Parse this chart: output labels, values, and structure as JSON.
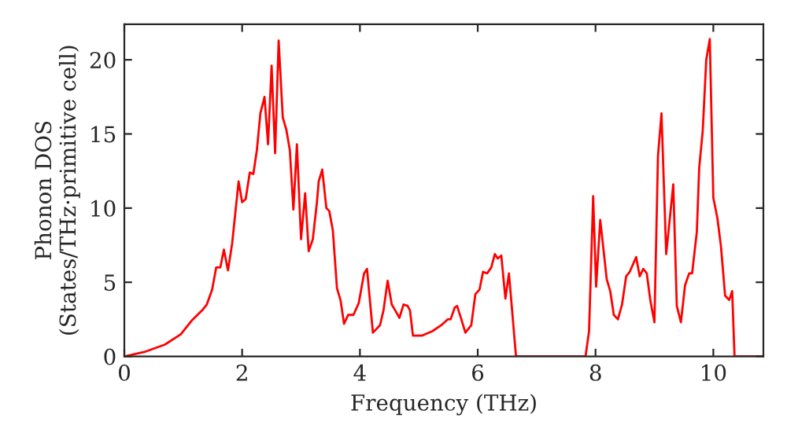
{
  "chart_data": {
    "type": "line",
    "xlabel": "Frequency (THz)",
    "ylabel": "Phonon DOS\n(States/THz·primitive cell)",
    "xlim": [
      0,
      10.85
    ],
    "ylim": [
      0,
      22.4
    ],
    "xticks": [
      0,
      2,
      4,
      6,
      8,
      10
    ],
    "yticks": [
      0,
      5,
      10,
      15,
      20
    ],
    "grid": false,
    "marker": "none",
    "line_style": "solid",
    "series": [
      {
        "color": "#ff0000",
        "x": [
          0,
          0.34,
          0.69,
          0.96,
          1.14,
          1.32,
          1.4,
          1.49,
          1.56,
          1.63,
          1.69,
          1.76,
          1.83,
          1.94,
          2.0,
          2.06,
          2.13,
          2.19,
          2.25,
          2.31,
          2.38,
          2.44,
          2.5,
          2.56,
          2.62,
          2.69,
          2.75,
          2.81,
          2.87,
          2.93,
          3.0,
          3.07,
          3.13,
          3.2,
          3.27,
          3.3,
          3.36,
          3.43,
          3.48,
          3.54,
          3.61,
          3.67,
          3.73,
          3.8,
          3.89,
          3.98,
          4.07,
          4.12,
          4.22,
          4.34,
          4.4,
          4.47,
          4.54,
          4.6,
          4.67,
          4.74,
          4.81,
          4.85,
          4.9,
          5.05,
          5.23,
          5.38,
          5.49,
          5.54,
          5.61,
          5.65,
          5.73,
          5.79,
          5.89,
          5.96,
          6.03,
          6.09,
          6.16,
          6.23,
          6.29,
          6.34,
          6.4,
          6.47,
          6.53,
          6.65,
          7.83,
          7.89,
          7.96,
          8.01,
          8.08,
          8.19,
          8.25,
          8.31,
          8.38,
          8.45,
          8.52,
          8.58,
          8.69,
          8.75,
          8.81,
          8.87,
          8.93,
          9.0,
          9.06,
          9.12,
          9.2,
          9.32,
          9.38,
          9.45,
          9.52,
          9.59,
          9.64,
          9.72,
          9.76,
          9.82,
          9.88,
          9.94,
          10.0,
          10.07,
          10.13,
          10.2,
          10.27,
          10.32,
          10.36,
          10.85
        ],
        "values": [
          0,
          0.3,
          0.8,
          1.5,
          2.4,
          3.1,
          3.5,
          4.5,
          6.0,
          6.0,
          7.2,
          5.8,
          7.6,
          11.8,
          10.4,
          10.6,
          12.4,
          12.3,
          13.9,
          16.4,
          17.5,
          14.3,
          19.6,
          13.7,
          21.3,
          16.1,
          15.3,
          13.9,
          9.9,
          14.3,
          7.9,
          11.0,
          7.1,
          7.9,
          10.4,
          11.8,
          12.6,
          10.0,
          9.8,
          8.5,
          4.6,
          3.8,
          2.2,
          2.8,
          2.8,
          3.6,
          5.6,
          5.9,
          1.6,
          2.1,
          3.1,
          5.1,
          3.5,
          3.1,
          2.6,
          3.5,
          3.4,
          3.1,
          1.4,
          1.4,
          1.7,
          2.1,
          2.5,
          2.5,
          3.3,
          3.4,
          2.4,
          1.6,
          2.1,
          4.2,
          4.5,
          5.7,
          5.6,
          6.0,
          6.9,
          6.6,
          6.8,
          3.9,
          5.6,
          0,
          0,
          1.7,
          10.8,
          4.7,
          9.2,
          5.2,
          4.4,
          2.8,
          2.5,
          3.5,
          5.4,
          5.7,
          6.7,
          5.4,
          5.9,
          5.6,
          3.8,
          2.3,
          13.5,
          16.4,
          6.9,
          11.6,
          3.4,
          2.3,
          4.8,
          5.6,
          5.6,
          8.4,
          12.7,
          15.2,
          20.0,
          21.4,
          10.7,
          9.3,
          7.4,
          4.1,
          3.8,
          4.4,
          0,
          0
        ]
      }
    ]
  }
}
